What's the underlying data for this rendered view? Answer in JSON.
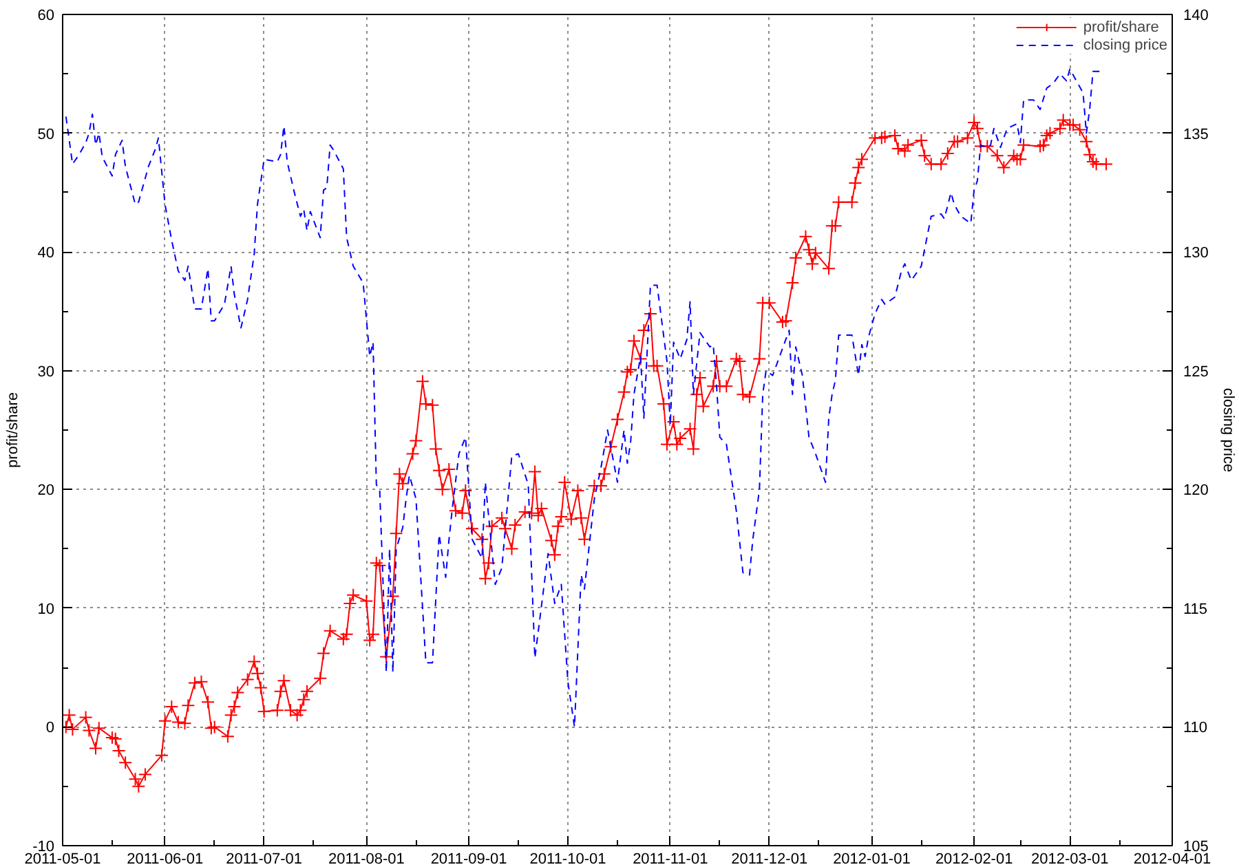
{
  "chart_data": {
    "type": "line",
    "ylabel": "profit/share",
    "y2label": "closing price",
    "xlim": [
      "2011-05-01",
      "2012-04-01"
    ],
    "xticks": [
      "2011-05-01",
      {
        "value": "2011-05-16",
        "label": null
      },
      "2011-06-01",
      {
        "value": "2011-06-16",
        "label": null
      },
      "2011-07-01",
      {
        "value": "2011-07-16",
        "label": null
      },
      "2011-08-01",
      {
        "value": "2011-08-16",
        "label": null
      },
      "2011-09-01",
      {
        "value": "2011-09-16",
        "label": null
      },
      "2011-10-01",
      {
        "value": "2011-10-16",
        "label": null
      },
      "2011-11-01",
      {
        "value": "2011-11-16",
        "label": null
      },
      "2011-12-01",
      {
        "value": "2011-12-16",
        "label": null
      },
      "2012-01-01",
      {
        "value": "2012-01-16",
        "label": null
      },
      "2012-02-01",
      {
        "value": "2012-02-15",
        "label": null
      },
      "2012-03-01",
      {
        "value": "2012-03-16",
        "label": null
      },
      "2012-04-01"
    ],
    "ylim": [
      -10,
      60
    ],
    "yticks": [
      -10,
      {
        "value": -5,
        "label": null
      },
      0,
      {
        "value": 5,
        "label": null
      },
      10,
      {
        "value": 15,
        "label": null
      },
      20,
      {
        "value": 25,
        "label": null
      },
      30,
      {
        "value": 35,
        "label": null
      },
      40,
      {
        "value": 45,
        "label": null
      },
      50,
      {
        "value": 55,
        "label": null
      },
      60
    ],
    "y2lim": [
      105,
      140
    ],
    "y2ticks": [
      105,
      {
        "value": 107.5,
        "label": null
      },
      110,
      {
        "value": 112.5,
        "label": null
      },
      115,
      {
        "value": 117.5,
        "label": null
      },
      120,
      {
        "value": 122.5,
        "label": null
      },
      125,
      {
        "value": 127.5,
        "label": null
      },
      130,
      {
        "value": 132.5,
        "label": null
      },
      135,
      {
        "value": 137.5,
        "label": null
      },
      140
    ],
    "grid": true,
    "legend": "top right",
    "series": [
      {
        "name": "profit/share",
        "color": "#ff0000",
        "marker": "cross",
        "line_style": "solid",
        "x": [
          "2011-05-02",
          "2011-05-03",
          "2011-05-04",
          "2011-05-08",
          "2011-05-09",
          "2011-05-11",
          "2011-05-12",
          "2011-05-16",
          "2011-05-17",
          "2011-05-18",
          "2011-05-20",
          "2011-05-23",
          "2011-05-24",
          "2011-05-26",
          "2011-05-31",
          "2011-06-01",
          "2011-06-03",
          "2011-06-05",
          "2011-06-07",
          "2011-06-08",
          "2011-06-10",
          "2011-06-12",
          "2011-06-14",
          "2011-06-15",
          "2011-06-16",
          "2011-06-20",
          "2011-06-21",
          "2011-06-22",
          "2011-06-23",
          "2011-06-26",
          "2011-06-28",
          "2011-06-29",
          "2011-06-30",
          "2011-07-01",
          "2011-07-05",
          "2011-07-06",
          "2011-07-07",
          "2011-07-09",
          "2011-07-11",
          "2011-07-12",
          "2011-07-13",
          "2011-07-14",
          "2011-07-18",
          "2011-07-19",
          "2011-07-21",
          "2011-07-25",
          "2011-07-26",
          "2011-07-27",
          "2011-07-28",
          "2011-08-01",
          "2011-08-02",
          "2011-08-03",
          "2011-08-04",
          "2011-08-05",
          "2011-08-07",
          "2011-08-09",
          "2011-08-10",
          "2011-08-11",
          "2011-08-12",
          "2011-08-15",
          "2011-08-16",
          "2011-08-18",
          "2011-08-19",
          "2011-08-21",
          "2011-08-22",
          "2011-08-23",
          "2011-08-24",
          "2011-08-26",
          "2011-08-28",
          "2011-08-30",
          "2011-08-31",
          "2011-09-02",
          "2011-09-05",
          "2011-09-06",
          "2011-09-07",
          "2011-09-08",
          "2011-09-11",
          "2011-09-12",
          "2011-09-14",
          "2011-09-15",
          "2011-09-18",
          "2011-09-20",
          "2011-09-21",
          "2011-09-22",
          "2011-09-23",
          "2011-09-26",
          "2011-09-27",
          "2011-09-28",
          "2011-09-29",
          "2011-09-30",
          "2011-10-02",
          "2011-10-04",
          "2011-10-05",
          "2011-10-06",
          "2011-10-09",
          "2011-10-11",
          "2011-10-12",
          "2011-10-14",
          "2011-10-16",
          "2011-10-18",
          "2011-10-19",
          "2011-10-20",
          "2011-10-21",
          "2011-10-23",
          "2011-10-24",
          "2011-10-26",
          "2011-10-27",
          "2011-10-28",
          "2011-10-30",
          "2011-10-31",
          "2011-11-02",
          "2011-11-03",
          "2011-11-04",
          "2011-11-07",
          "2011-11-08",
          "2011-11-09",
          "2011-11-10",
          "2011-11-11",
          "2011-11-14",
          "2011-11-15",
          "2011-11-16",
          "2011-11-18",
          "2011-11-21",
          "2011-11-22",
          "2011-11-23",
          "2011-11-25",
          "2011-11-28",
          "2011-11-29",
          "2011-12-01",
          "2011-12-05",
          "2011-12-06",
          "2011-12-08",
          "2011-12-09",
          "2011-12-12",
          "2011-12-13",
          "2011-12-14",
          "2011-12-15",
          "2011-12-19",
          "2011-12-20",
          "2011-12-21",
          "2011-12-22",
          "2011-12-26",
          "2011-12-27",
          "2011-12-28",
          "2011-12-29",
          "2012-01-02",
          "2012-01-04",
          "2012-01-05",
          "2012-01-08",
          "2012-01-09",
          "2012-01-11",
          "2012-01-12",
          "2012-01-16",
          "2012-01-17",
          "2012-01-19",
          "2012-01-22",
          "2012-01-24",
          "2012-01-26",
          "2012-01-27",
          "2012-01-30",
          "2012-02-01",
          "2012-02-02",
          "2012-02-03",
          "2012-02-05",
          "2012-02-08",
          "2012-02-10",
          "2012-02-13",
          "2012-02-14",
          "2012-02-15",
          "2012-02-16",
          "2012-02-21",
          "2012-02-22",
          "2012-02-23",
          "2012-02-24",
          "2012-02-27",
          "2012-02-28",
          "2012-03-01",
          "2012-03-02",
          "2012-03-04",
          "2012-03-06",
          "2012-03-07",
          "2012-03-08",
          "2012-03-09",
          "2012-03-12"
        ],
        "values": [
          0.0,
          1.0,
          -0.2,
          0.8,
          -0.3,
          -1.8,
          -0.1,
          -0.9,
          -1.0,
          -2.0,
          -3.0,
          -4.4,
          -5.0,
          -4.0,
          -2.4,
          0.5,
          1.7,
          0.4,
          0.3,
          1.8,
          3.7,
          3.8,
          2.1,
          -0.1,
          0.0,
          -0.8,
          1.0,
          1.7,
          2.9,
          4.0,
          5.5,
          4.5,
          3.3,
          1.3,
          1.4,
          3.0,
          3.9,
          1.4,
          1.0,
          1.4,
          2.3,
          3.0,
          4.1,
          6.2,
          8.1,
          7.4,
          7.8,
          10.4,
          11.1,
          10.6,
          7.3,
          7.8,
          13.8,
          13.6,
          5.9,
          11.0,
          16.3,
          21.3,
          20.5,
          23.0,
          24.1,
          29.1,
          27.2,
          27.1,
          23.4,
          21.6,
          20.0,
          21.7,
          18.2,
          18.0,
          19.9,
          16.7,
          15.8,
          12.5,
          13.8,
          16.9,
          17.6,
          16.7,
          15.0,
          17.0,
          18.1,
          18.0,
          21.5,
          17.8,
          18.4,
          15.7,
          14.5,
          16.9,
          17.7,
          20.6,
          17.5,
          19.9,
          17.6,
          15.8,
          20.3,
          20.3,
          21.3,
          23.6,
          25.9,
          28.2,
          29.9,
          30.1,
          32.5,
          31.0,
          33.4,
          34.8,
          30.4,
          30.4,
          27.2,
          23.8,
          25.7,
          23.8,
          24.3,
          25.1,
          23.4,
          28.0,
          29.4,
          27.0,
          28.7,
          30.8,
          28.7,
          28.7,
          31.0,
          30.8,
          28.0,
          27.8,
          31.0,
          35.7,
          35.7,
          34.1,
          34.2,
          37.4,
          39.5,
          41.3,
          40.2,
          39.0,
          39.9,
          38.6,
          42.2,
          42.2,
          44.2,
          44.2,
          45.8,
          47.1,
          47.8,
          49.6,
          49.6,
          49.7,
          49.8,
          48.7,
          48.5,
          49.0,
          49.4,
          48.1,
          47.4,
          47.4,
          48.3,
          49.3,
          49.3,
          49.6,
          50.9,
          50.4,
          48.9,
          48.9,
          48.1,
          47.1,
          48.1,
          47.8,
          47.8,
          49.0,
          48.9,
          49.0,
          49.8,
          50.0,
          50.4,
          51.1,
          50.7,
          50.7,
          50.3,
          49.3,
          48.2,
          47.6,
          47.4,
          47.4
        ]
      },
      {
        "name": "closing price",
        "color": "#0000ff",
        "line_style": "dashed",
        "axis": "y2",
        "x": [
          "2011-05-02",
          "2011-05-04",
          "2011-05-06",
          "2011-05-08",
          "2011-05-09",
          "2011-05-10",
          "2011-05-11",
          "2011-05-12",
          "2011-05-13",
          "2011-05-16",
          "2011-05-17",
          "2011-05-19",
          "2011-05-20",
          "2011-05-23",
          "2011-05-24",
          "2011-05-27",
          "2011-05-29",
          "2011-05-30",
          "2011-06-01",
          "2011-06-03",
          "2011-06-05",
          "2011-06-07",
          "2011-06-08",
          "2011-06-09",
          "2011-06-10",
          "2011-06-12",
          "2011-06-14",
          "2011-06-15",
          "2011-06-16",
          "2011-06-19",
          "2011-06-21",
          "2011-06-22",
          "2011-06-24",
          "2011-06-26",
          "2011-06-28",
          "2011-06-29",
          "2011-07-01",
          "2011-07-05",
          "2011-07-06",
          "2011-07-07",
          "2011-07-08",
          "2011-07-10",
          "2011-07-12",
          "2011-07-13",
          "2011-07-14",
          "2011-07-15",
          "2011-07-18",
          "2011-07-19",
          "2011-07-20",
          "2011-07-21",
          "2011-07-22",
          "2011-07-25",
          "2011-07-26",
          "2011-07-28",
          "2011-07-31",
          "2011-08-02",
          "2011-08-03",
          "2011-08-04",
          "2011-08-05",
          "2011-08-07",
          "2011-08-08",
          "2011-08-09",
          "2011-08-10",
          "2011-08-12",
          "2011-08-13",
          "2011-08-14",
          "2011-08-16",
          "2011-08-19",
          "2011-08-21",
          "2011-08-23",
          "2011-08-25",
          "2011-08-26",
          "2011-08-27",
          "2011-08-29",
          "2011-08-31",
          "2011-09-02",
          "2011-09-05",
          "2011-09-06",
          "2011-09-09",
          "2011-09-11",
          "2011-09-14",
          "2011-09-16",
          "2011-09-19",
          "2011-09-21",
          "2011-09-25",
          "2011-09-27",
          "2011-09-29",
          "2011-10-01",
          "2011-10-03",
          "2011-10-05",
          "2011-10-06",
          "2011-10-09",
          "2011-10-11",
          "2011-10-13",
          "2011-10-16",
          "2011-10-18",
          "2011-10-19",
          "2011-10-20",
          "2011-10-21",
          "2011-10-23",
          "2011-10-24",
          "2011-10-26",
          "2011-10-28",
          "2011-10-31",
          "2011-11-01",
          "2011-11-02",
          "2011-11-04",
          "2011-11-06",
          "2011-11-07",
          "2011-11-08",
          "2011-11-10",
          "2011-11-13",
          "2011-11-14",
          "2011-11-15",
          "2011-11-16",
          "2011-11-18",
          "2011-11-21",
          "2011-11-23",
          "2011-11-25",
          "2011-11-26",
          "2011-11-28",
          "2011-11-29",
          "2011-11-30",
          "2011-12-02",
          "2011-12-07",
          "2011-12-08",
          "2011-12-09",
          "2011-12-11",
          "2011-12-13",
          "2011-12-15",
          "2011-12-18",
          "2011-12-19",
          "2011-12-20",
          "2011-12-21",
          "2011-12-22",
          "2011-12-26",
          "2011-12-28",
          "2011-12-29",
          "2011-12-30",
          "2011-12-31",
          "2012-01-02",
          "2012-01-04",
          "2012-01-05",
          "2012-01-08",
          "2012-01-10",
          "2012-01-11",
          "2012-01-13",
          "2012-01-16",
          "2012-01-19",
          "2012-01-22",
          "2012-01-23",
          "2012-01-25",
          "2012-01-26",
          "2012-01-28",
          "2012-01-31",
          "2012-02-01",
          "2012-02-02",
          "2012-02-03",
          "2012-02-05",
          "2012-02-06",
          "2012-02-07",
          "2012-02-09",
          "2012-02-11",
          "2012-02-14",
          "2012-02-15",
          "2012-02-16",
          "2012-02-19",
          "2012-02-21",
          "2012-02-23",
          "2012-02-25",
          "2012-02-27",
          "2012-02-29",
          "2012-03-01",
          "2012-03-03",
          "2012-03-05",
          "2012-03-06",
          "2012-03-07",
          "2012-03-08",
          "2012-03-11"
        ],
        "values": [
          135.7,
          133.7,
          134.1,
          134.6,
          135.0,
          135.8,
          134.5,
          135.0,
          134.0,
          133.2,
          134.1,
          134.7,
          133.6,
          132.0,
          132.1,
          133.6,
          134.3,
          134.8,
          132.0,
          130.5,
          129.2,
          128.8,
          129.4,
          128.5,
          127.6,
          127.6,
          129.3,
          127.1,
          127.1,
          127.8,
          129.4,
          128.2,
          126.8,
          128.0,
          129.9,
          132.0,
          133.9,
          133.8,
          134.1,
          135.3,
          133.8,
          132.6,
          131.5,
          131.8,
          130.9,
          131.7,
          130.6,
          132.6,
          132.7,
          134.5,
          134.3,
          133.5,
          130.6,
          129.4,
          128.7,
          125.6,
          126.2,
          120.2,
          120.0,
          112.3,
          117.5,
          112.3,
          117.5,
          118.4,
          119.6,
          120.6,
          119.6,
          112.7,
          112.7,
          118.1,
          116.3,
          117.9,
          119.2,
          121.5,
          122.2,
          117.9,
          117.1,
          120.3,
          116.0,
          116.7,
          121.4,
          121.5,
          120.2,
          112.9,
          117.3,
          115.2,
          116.0,
          111.9,
          110.0,
          116.4,
          115.8,
          119.6,
          120.9,
          122.5,
          120.3,
          122.5,
          121.1,
          122.0,
          124.0,
          125.6,
          123.0,
          128.6,
          128.6,
          125.4,
          122.7,
          126.2,
          125.5,
          126.3,
          127.9,
          124.0,
          126.6,
          126.0,
          126.1,
          124.4,
          122.2,
          121.9,
          119.1,
          116.5,
          116.4,
          117.9,
          120.0,
          124.0,
          125.0,
          124.8,
          126.7,
          124.0,
          126.0,
          124.8,
          122.2,
          121.5,
          120.3,
          123.0,
          124.0,
          124.6,
          126.5,
          126.5,
          124.8,
          126.1,
          125.6,
          126.4,
          127.4,
          128.0,
          127.8,
          128.1,
          129.2,
          129.5,
          128.8,
          129.4,
          131.5,
          131.6,
          131.4,
          132.5,
          132.0,
          131.5,
          131.2,
          132.6,
          133.0,
          134.5,
          134.4,
          134.5,
          135.2,
          134.4,
          135.2,
          135.4,
          134.6,
          136.4,
          136.4,
          136.0,
          136.9,
          137.1,
          137.5,
          137.2,
          137.7,
          137.2,
          136.7,
          135.0,
          136.0,
          137.6,
          137.6
        ]
      }
    ]
  }
}
